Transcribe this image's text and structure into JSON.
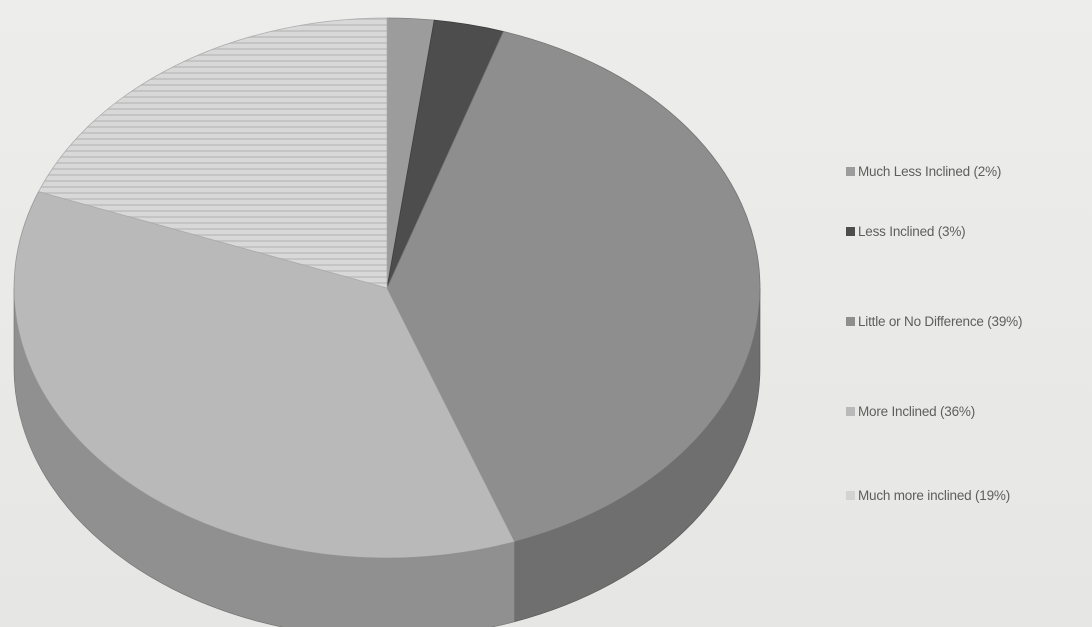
{
  "chart_data": {
    "type": "pie",
    "title": "",
    "legend_position": "right",
    "slices": [
      {
        "label": "Much Less Inclined (2%)",
        "value": 2,
        "color": "#9c9c9c"
      },
      {
        "label": "Less Inclined (3%)",
        "value": 3,
        "color": "#4d4d4d"
      },
      {
        "label": "Little or No Difference (39%)",
        "value": 39,
        "color": "#8e8e8e"
      },
      {
        "label": "More Inclined (36%)",
        "value": 36,
        "color": "#b9b9b9"
      },
      {
        "label": "Much more inclined (19%)",
        "value": 19,
        "color": "#d3d3d3"
      }
    ]
  }
}
